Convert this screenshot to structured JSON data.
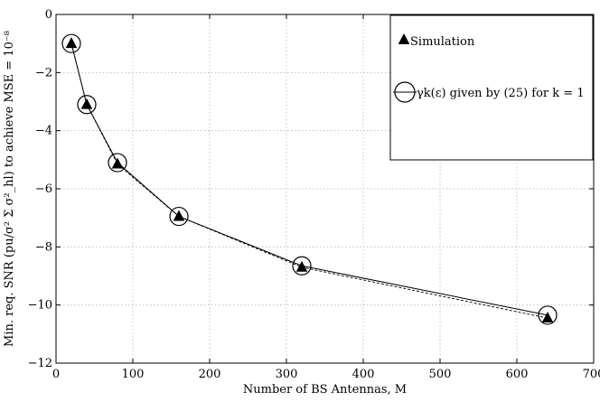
{
  "chart_data": {
    "type": "line",
    "xlabel": "Number of BS Antennas, M",
    "ylabel": "Min. req. SNR (pu/σ² Σ σ²_hl) to achieve MSE = 10⁻⁸",
    "xlim": [
      0,
      700
    ],
    "ylim": [
      -12,
      0
    ],
    "x_ticks": [
      "0",
      "100",
      "200",
      "300",
      "400",
      "500",
      "600",
      "700"
    ],
    "y_ticks": [
      "0",
      "−2",
      "−4",
      "−6",
      "−8",
      "−10",
      "−12"
    ],
    "grid": true,
    "legend_position": "top-right",
    "x": [
      20,
      40,
      80,
      160,
      320,
      640
    ],
    "series": [
      {
        "name": "Simulation",
        "marker": "triangle",
        "line": "dashed",
        "color": "#000000",
        "values": [
          -1.0,
          -3.1,
          -5.15,
          -6.95,
          -8.7,
          -10.45
        ]
      },
      {
        "name": "γk(ε) given by (25) for k = 1",
        "marker": "circle",
        "line": "solid",
        "color": "#000000",
        "values": [
          -1.0,
          -3.1,
          -5.1,
          -6.95,
          -8.65,
          -10.35
        ]
      }
    ]
  }
}
